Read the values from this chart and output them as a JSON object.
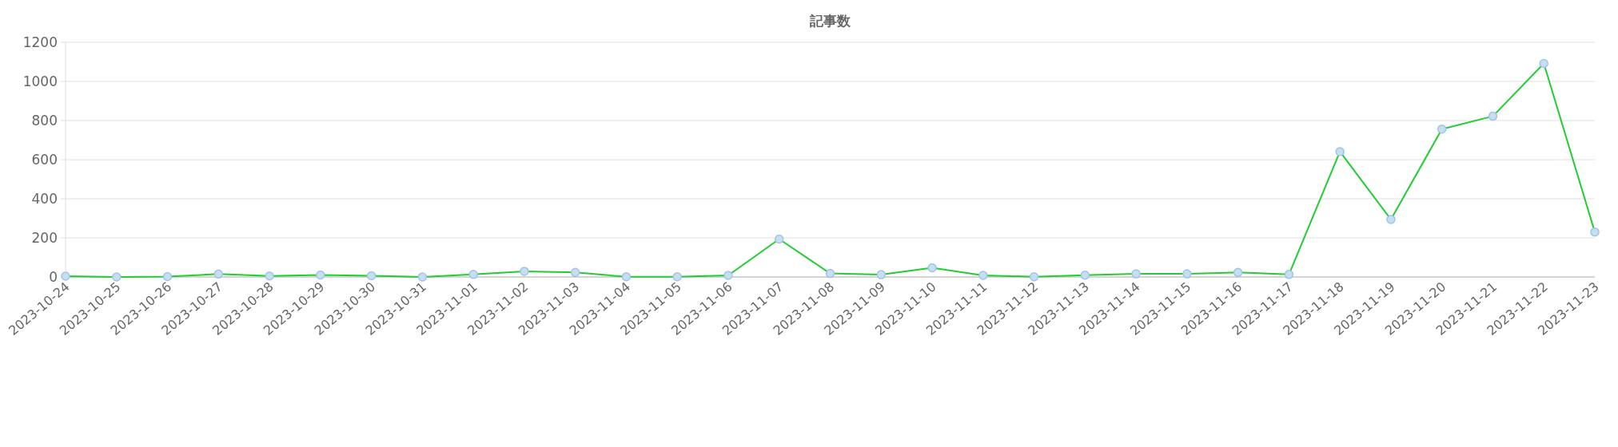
{
  "chart_data": {
    "type": "line",
    "title": "記事数",
    "categories": [
      "2023-10-24",
      "2023-10-25",
      "2023-10-26",
      "2023-10-27",
      "2023-10-28",
      "2023-10-29",
      "2023-10-30",
      "2023-10-31",
      "2023-11-01",
      "2023-11-02",
      "2023-11-03",
      "2023-11-04",
      "2023-11-05",
      "2023-11-06",
      "2023-11-07",
      "2023-11-08",
      "2023-11-09",
      "2023-11-10",
      "2023-11-11",
      "2023-11-12",
      "2023-11-13",
      "2023-11-14",
      "2023-11-15",
      "2023-11-16",
      "2023-11-17",
      "2023-11-18",
      "2023-11-19",
      "2023-11-20",
      "2023-11-21",
      "2023-11-22",
      "2023-11-23"
    ],
    "series": [
      {
        "color": "#22cc33",
        "values": [
          4,
          0,
          2,
          15,
          5,
          10,
          6,
          0,
          13,
          29,
          23,
          1,
          1,
          8,
          194,
          18,
          12,
          47,
          8,
          1,
          9,
          16,
          16,
          23,
          13,
          641,
          294,
          756,
          822,
          1092,
          230
        ]
      }
    ],
    "ylim": [
      0,
      1200
    ],
    "yticks": [
      0,
      200,
      400,
      600,
      800,
      1000,
      1200
    ],
    "grid": "y",
    "marker": "circle",
    "line_style": "solid"
  }
}
